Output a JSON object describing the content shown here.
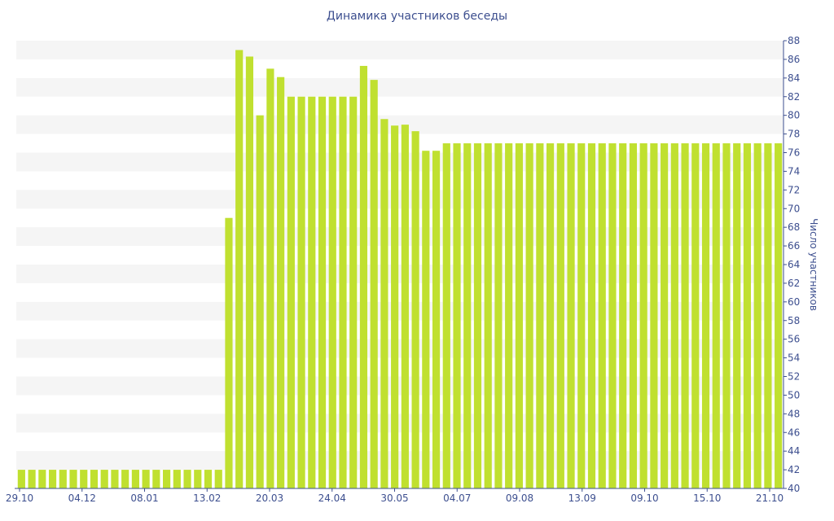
{
  "chart_data": {
    "type": "bar",
    "title": "Динамика участников беседы",
    "ylabel": "Число участников",
    "xlabel": "",
    "ylim": [
      40,
      88
    ],
    "ytick_step": 2,
    "y_axis_side": "right",
    "grid": "alternating horizontal bands",
    "bar_color": "#c0e030",
    "band_color": "#f5f5f5",
    "text_color": "#3d4f8f",
    "x_tick_labels": [
      "29.10",
      "04.12",
      "08.01",
      "13.02",
      "20.03",
      "24.04",
      "30.05",
      "04.07",
      "09.08",
      "13.09",
      "09.10",
      "15.10",
      "21.10"
    ],
    "values": [
      42,
      42,
      42,
      42,
      42,
      42,
      42,
      42,
      42,
      42,
      42,
      42,
      42,
      42,
      42,
      42,
      42,
      42,
      42,
      42,
      69,
      87,
      86.3,
      80,
      85,
      84.1,
      82,
      82,
      82,
      82,
      82,
      82,
      82,
      85.3,
      83.8,
      79.6,
      78.9,
      79,
      78.3,
      76.2,
      76.2,
      77,
      77,
      77,
      77,
      77,
      77,
      77,
      77,
      77,
      77,
      77,
      77,
      77,
      77,
      77,
      77,
      77,
      77,
      77,
      77,
      77,
      77,
      77,
      77,
      77,
      77,
      77,
      77,
      77,
      77,
      77,
      77,
      77
    ]
  }
}
